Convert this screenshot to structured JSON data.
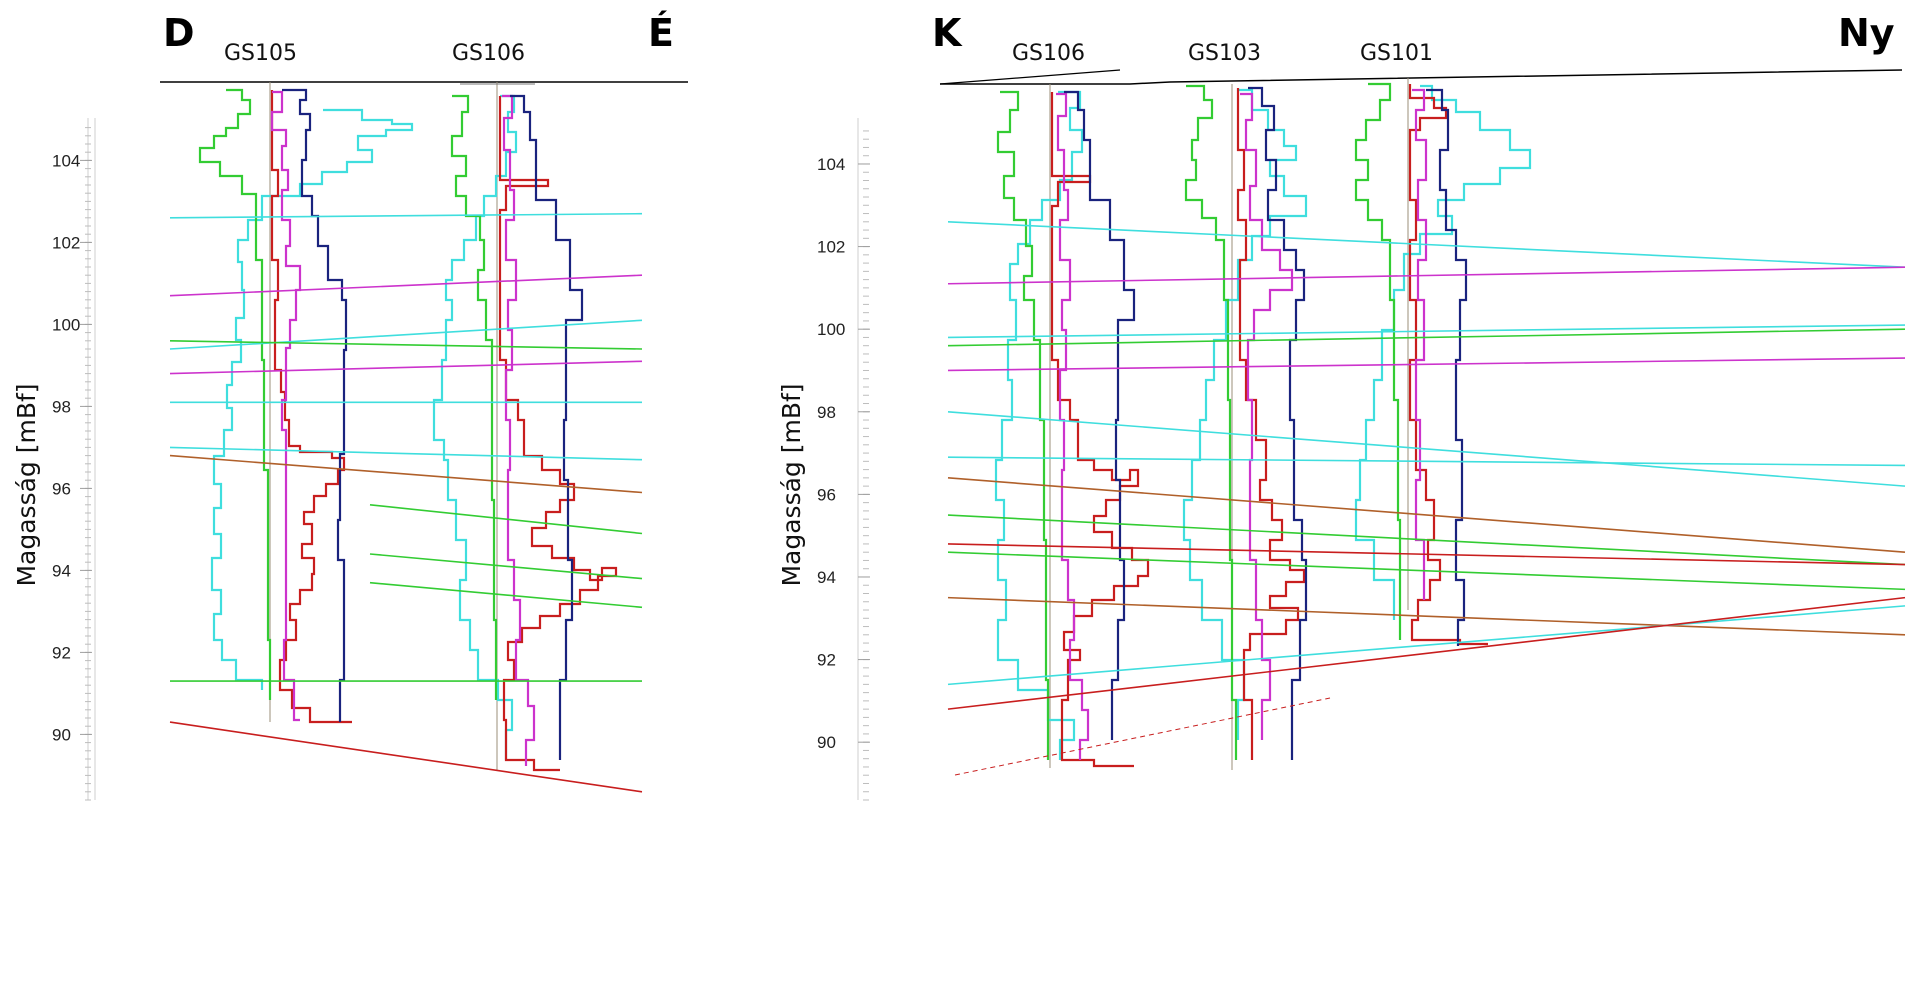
{
  "chart_data": [
    {
      "type": "line",
      "direction_left": "D",
      "direction_right": "É",
      "ylabel": "Magasság [mBf]",
      "yticks": [
        90,
        92,
        94,
        96,
        98,
        100,
        102,
        104
      ],
      "ylim": [
        88.4,
        104.8
      ],
      "wells": [
        {
          "name": "GS105"
        },
        {
          "name": "GS106"
        }
      ],
      "log_colors": {
        "cyan": "#3fdede",
        "green": "#33cc33",
        "red": "#c81e1e",
        "magenta": "#cc33cc",
        "navy": "#1a237e"
      },
      "correlation_lines": [
        {
          "color": "#3fdede",
          "from": 102.6,
          "to": 102.7
        },
        {
          "color": "#cc33cc",
          "from": 100.7,
          "to": 101.2
        },
        {
          "color": "#3fdede",
          "from": 99.4,
          "to": 100.1
        },
        {
          "color": "#33cc33",
          "from": 99.6,
          "to": 99.4
        },
        {
          "color": "#cc33cc",
          "from": 98.8,
          "to": 99.1
        },
        {
          "color": "#3fdede",
          "from": 98.1,
          "to": 98.1
        },
        {
          "color": "#3fdede",
          "from": 97.0,
          "to": 96.7
        },
        {
          "color": "#b0602a",
          "from": 96.8,
          "to": 95.9
        },
        {
          "color": "#33cc33",
          "from": 91.3,
          "to": 91.3
        },
        {
          "color": "#c81e1e",
          "from": 90.3,
          "to": 88.6
        }
      ],
      "local_correlation_lines": [
        {
          "color": "#33cc33",
          "from": 95.6,
          "to": 94.9
        },
        {
          "color": "#33cc33",
          "from": 94.4,
          "to": 93.8
        },
        {
          "color": "#33cc33",
          "from": 93.7,
          "to": 93.1
        }
      ]
    },
    {
      "type": "line",
      "direction_left": "K",
      "direction_right": "Ny",
      "ylabel": "Magasság [mBf]",
      "yticks": [
        90,
        92,
        94,
        96,
        98,
        100,
        102,
        104
      ],
      "ylim": [
        88.6,
        104.8
      ],
      "wells": [
        {
          "name": "GS106"
        },
        {
          "name": "GS103"
        },
        {
          "name": "GS101"
        }
      ],
      "log_colors": {
        "cyan": "#3fdede",
        "green": "#33cc33",
        "red": "#c81e1e",
        "magenta": "#cc33cc",
        "navy": "#1a237e"
      },
      "correlation_lines": [
        {
          "color": "#3fdede",
          "from": 102.6,
          "to": 101.5
        },
        {
          "color": "#cc33cc",
          "from": 101.1,
          "to": 101.5
        },
        {
          "color": "#3fdede",
          "from": 99.8,
          "to": 100.1
        },
        {
          "color": "#33cc33",
          "from": 99.6,
          "to": 100.0
        },
        {
          "color": "#cc33cc",
          "from": 99.0,
          "to": 99.3
        },
        {
          "color": "#3fdede",
          "from": 98.0,
          "to": 96.2
        },
        {
          "color": "#3fdede",
          "from": 96.9,
          "to": 96.7
        },
        {
          "color": "#b0602a",
          "from": 96.4,
          "to": 94.6
        },
        {
          "color": "#33cc33",
          "from": 95.5,
          "to": 94.3
        },
        {
          "color": "#c81e1e",
          "from": 94.8,
          "to": 94.3
        },
        {
          "color": "#33cc33",
          "from": 94.6,
          "to": 93.7
        },
        {
          "color": "#b0602a",
          "from": 93.5,
          "to": 92.6
        },
        {
          "color": "#3fdede",
          "from": 91.4,
          "to": 93.3
        },
        {
          "color": "#c81e1e",
          "from": 90.8,
          "to": 93.5
        }
      ]
    }
  ]
}
